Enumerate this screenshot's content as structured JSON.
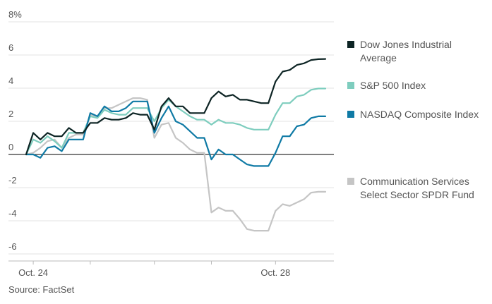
{
  "chart_data": {
    "type": "line",
    "title": "",
    "xlabel": "",
    "ylabel": "",
    "ylim": [
      -6,
      8
    ],
    "y_ticks": [
      "8%",
      "6",
      "4",
      "2",
      "0",
      "-2",
      "-4",
      "-6"
    ],
    "y_tick_values": [
      8,
      6,
      4,
      2,
      0,
      -2,
      -4,
      -6
    ],
    "x_tick_labels": [
      {
        "label": "Oct. 24",
        "index": 1
      },
      {
        "label": "Oct. 28",
        "index": 35
      }
    ],
    "day_boundaries": [
      1,
      9,
      18,
      26,
      35
    ],
    "source": "Source: FactSet",
    "x": [
      0,
      1,
      2,
      3,
      4,
      5,
      6,
      7,
      8,
      9,
      10,
      11,
      12,
      13,
      14,
      15,
      16,
      17,
      18,
      19,
      20,
      21,
      22,
      23,
      24,
      25,
      26,
      27,
      28,
      29,
      30,
      31,
      32,
      33,
      34,
      35,
      36,
      37,
      38,
      39,
      40,
      41,
      42
    ],
    "series": [
      {
        "name": "Dow Jones Industrial Average",
        "label_lines": [
          "Dow Jones Industrial",
          "Average"
        ],
        "color": "#0d2424",
        "values": [
          0,
          1.3,
          0.9,
          1.3,
          1.1,
          1.1,
          1.6,
          1.3,
          1.3,
          1.9,
          1.9,
          2.2,
          2.1,
          2.1,
          2.2,
          2.5,
          2.4,
          2.4,
          1.5,
          2.9,
          3.4,
          2.9,
          2.9,
          2.5,
          2.5,
          2.5,
          3.4,
          3.8,
          3.5,
          3.6,
          3.3,
          3.3,
          3.2,
          3.1,
          3.1,
          4.4,
          5.0,
          5.1,
          5.4,
          5.5,
          5.7,
          5.75,
          5.76
        ]
      },
      {
        "name": "S&P 500 Index",
        "label_lines": [
          "S&P 500 Index"
        ],
        "color": "#7ecdbe",
        "values": [
          0,
          0.9,
          0.7,
          1.1,
          0.8,
          0.4,
          1.3,
          1.3,
          1.3,
          2.3,
          2.2,
          2.7,
          2.5,
          2.4,
          2.4,
          2.8,
          2.8,
          2.8,
          2.0,
          2.8,
          3.3,
          2.9,
          2.6,
          2.3,
          2.1,
          2.1,
          1.8,
          2.1,
          1.9,
          1.9,
          1.8,
          1.6,
          1.5,
          1.5,
          1.5,
          2.4,
          3.1,
          3.1,
          3.5,
          3.6,
          3.9,
          3.98,
          3.98
        ]
      },
      {
        "name": "NASDAQ Composite Index",
        "label_lines": [
          "NASDAQ Composite Index"
        ],
        "color": "#0f7aa5",
        "values": [
          0,
          0,
          -0.2,
          0.4,
          0.5,
          0.2,
          0.9,
          0.9,
          0.9,
          2.5,
          2.3,
          2.9,
          2.6,
          2.6,
          2.8,
          3.2,
          3.2,
          3.2,
          1.3,
          2.2,
          2.9,
          2.0,
          1.8,
          1.4,
          1.0,
          1.0,
          -0.3,
          0.3,
          0.0,
          0.0,
          -0.3,
          -0.6,
          -0.7,
          -0.7,
          -0.7,
          0.1,
          1.1,
          1.1,
          1.7,
          1.8,
          2.2,
          2.3,
          2.3
        ]
      },
      {
        "name": "Communication Services Select Sector SPDR Fund",
        "label_lines": [
          "Communication Services",
          "Select Sector SPDR Fund"
        ],
        "color": "#c5c5c5",
        "values": [
          0,
          0.1,
          0.4,
          0.8,
          0.9,
          0.4,
          1.0,
          1.2,
          1.2,
          2.4,
          2.3,
          2.8,
          2.8,
          3.0,
          3.2,
          3.4,
          3.4,
          3.3,
          1.0,
          1.8,
          1.9,
          1.0,
          0.7,
          0.3,
          0.1,
          0.1,
          -3.5,
          -3.2,
          -3.4,
          -3.4,
          -3.9,
          -4.5,
          -4.6,
          -4.6,
          -4.6,
          -3.4,
          -3.0,
          -3.1,
          -2.9,
          -2.7,
          -2.3,
          -2.25,
          -2.25
        ]
      }
    ]
  }
}
